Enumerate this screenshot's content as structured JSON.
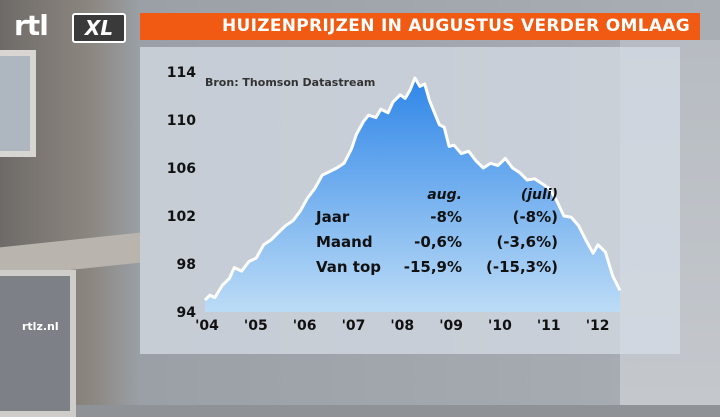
{
  "header": {
    "logo_text": "rtl",
    "logo_badge": "XL",
    "title": "HUIZENPRIJZEN IN AUGUSTUS VERDER OMLAAG"
  },
  "source_note": "Bron: Thomson Datastream",
  "watermark": "rtlz.nl",
  "colors": {
    "title_bar": "#f05a12",
    "area_top": "#2f86e8",
    "area_bottom": "#bcdcf6",
    "line": "#ffffff"
  },
  "chart_data": {
    "type": "area",
    "title": "HUIZENPRIJZEN IN AUGUSTUS VERDER OMLAAG",
    "xlabel": "",
    "ylabel": "",
    "ylim": [
      94,
      114
    ],
    "xlim": [
      2004.0,
      2012.5
    ],
    "y_ticks": [
      "114",
      "110",
      "106",
      "102",
      "98",
      "94"
    ],
    "x_ticks": [
      "'04",
      "'05",
      "'06",
      "'07",
      "'08",
      "'09",
      "'10",
      "'11",
      "'12"
    ],
    "grid": false,
    "series": [
      {
        "name": "",
        "x": [
          2004.0,
          2004.1,
          2004.2,
          2004.35,
          2004.5,
          2004.6,
          2004.75,
          2004.9,
          2005.05,
          2005.2,
          2005.35,
          2005.5,
          2005.65,
          2005.8,
          2005.95,
          2006.1,
          2006.25,
          2006.4,
          2006.55,
          2006.7,
          2006.85,
          2007.0,
          2007.1,
          2007.25,
          2007.35,
          2007.5,
          2007.6,
          2007.75,
          2007.85,
          2008.0,
          2008.1,
          2008.2,
          2008.3,
          2008.4,
          2008.5,
          2008.6,
          2008.7,
          2008.8,
          2008.9,
          2009.0,
          2009.1,
          2009.25,
          2009.4,
          2009.55,
          2009.7,
          2009.85,
          2010.0,
          2010.15,
          2010.3,
          2010.45,
          2010.6,
          2010.75,
          2010.9,
          2011.05,
          2011.2,
          2011.35,
          2011.5,
          2011.65,
          2011.8,
          2011.95,
          2012.05,
          2012.2,
          2012.35,
          2012.5
        ],
        "values": [
          95.0,
          95.4,
          95.2,
          96.2,
          96.8,
          97.7,
          97.4,
          98.2,
          98.5,
          99.6,
          100.0,
          100.6,
          101.2,
          101.6,
          102.4,
          103.5,
          104.3,
          105.4,
          105.7,
          106.0,
          106.4,
          107.6,
          108.8,
          109.9,
          110.4,
          110.2,
          110.9,
          110.6,
          111.5,
          112.1,
          111.8,
          112.5,
          113.5,
          112.8,
          113.0,
          111.6,
          110.6,
          109.6,
          109.4,
          107.8,
          107.9,
          107.2,
          107.4,
          106.6,
          106.0,
          106.4,
          106.2,
          106.8,
          106.0,
          105.6,
          105.0,
          105.1,
          104.7,
          104.3,
          103.3,
          102.0,
          101.9,
          101.2,
          100.0,
          98.9,
          99.6,
          99.0,
          97.0,
          95.8
        ]
      }
    ],
    "table": {
      "headers": [
        "aug.",
        "(juli)"
      ],
      "rows": [
        {
          "label": "Jaar",
          "aug": "-8%",
          "juli": "(-8%)"
        },
        {
          "label": "Maand",
          "aug": "-0,6%",
          "juli": "(-3,6%)"
        },
        {
          "label": "Van top",
          "aug": "-15,9%",
          "juli": "(-15,3%)"
        }
      ]
    }
  }
}
